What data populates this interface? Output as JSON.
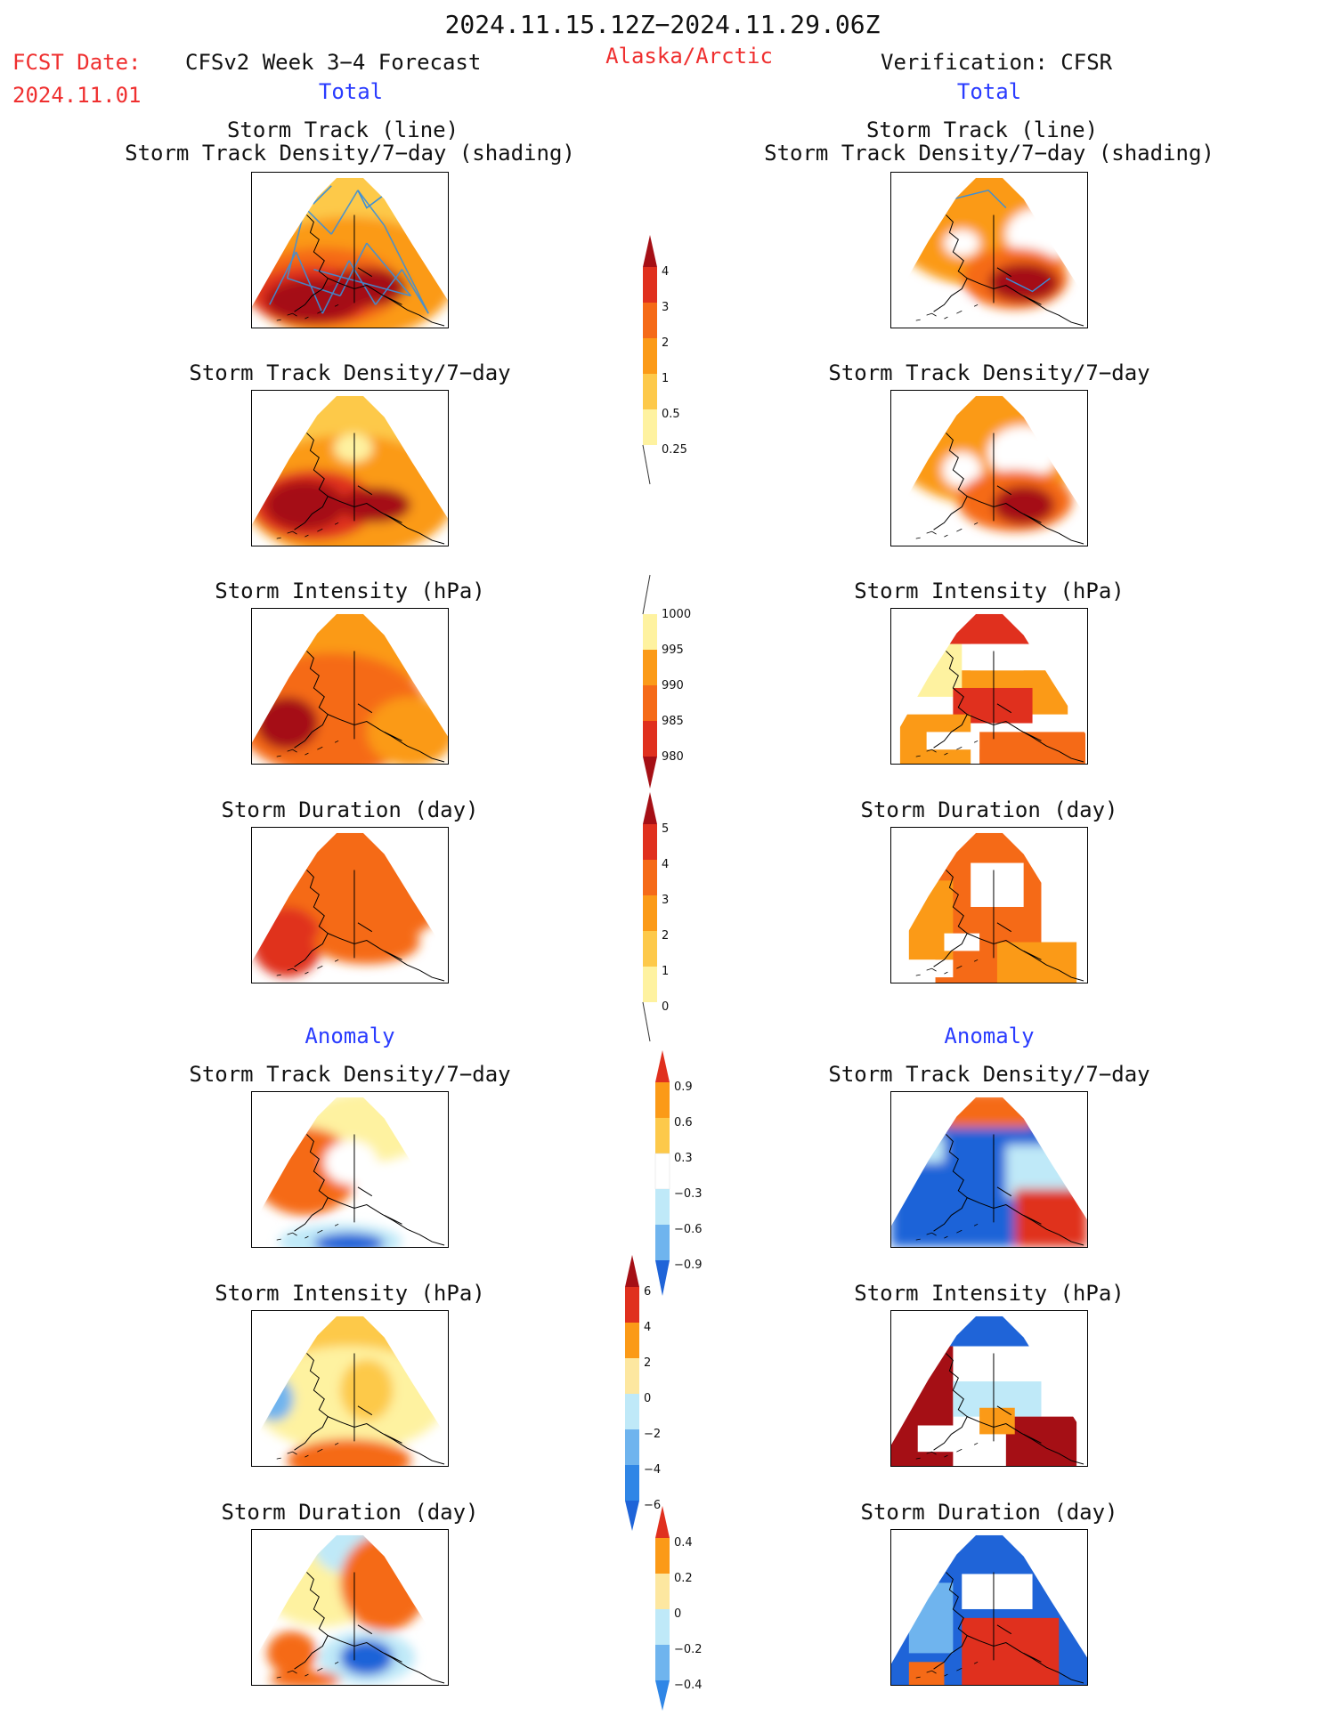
{
  "header": {
    "date_range": "2024.11.15.12Z−2024.11.29.06Z",
    "fcst_label": "FCST Date:",
    "fcst_date": "2024.11.01",
    "model_title": "CFSv2 Week 3−4 Forecast",
    "region": "Alaska/Arctic",
    "verification_title": "Verification: CFSR"
  },
  "sections": {
    "total": "Total",
    "anomaly": "Anomaly"
  },
  "panel_titles": {
    "track_line": "Storm Track (line)",
    "track_density_shading": "Storm Track Density/7−day (shading)",
    "track_density": "Storm Track Density/7−day",
    "intensity": "Storm Intensity (hPa)",
    "duration": "Storm Duration (day)"
  },
  "colors": {
    "dark_red": "#a50f15",
    "red": "#e0301e",
    "orange_red": "#f56a17",
    "orange": "#fb9a17",
    "light_orange": "#fdc94a",
    "yellow": "#fef2a0",
    "light_blue": "#bfe9f8",
    "mid_blue": "#6fb4ee",
    "blue": "#2f86e6",
    "dark_blue": "#1f64d8",
    "track_line": "#3b8fd9"
  },
  "colorbars": {
    "density": [
      "0.25",
      "0.5",
      "1",
      "2",
      "3",
      "4"
    ],
    "intensity": [
      "1000",
      "995",
      "990",
      "985",
      "980"
    ],
    "duration": [
      "0",
      "1",
      "2",
      "3",
      "4",
      "5"
    ],
    "density_anom": [
      "0.9",
      "0.6",
      "0.3",
      "−0.3",
      "−0.6",
      "−0.9"
    ],
    "intensity_anom": [
      "6",
      "4",
      "2",
      "0",
      "−2",
      "−4",
      "−6"
    ],
    "duration_anom": [
      "0.4",
      "0.2",
      "0",
      "−0.2",
      "−0.4"
    ]
  }
}
